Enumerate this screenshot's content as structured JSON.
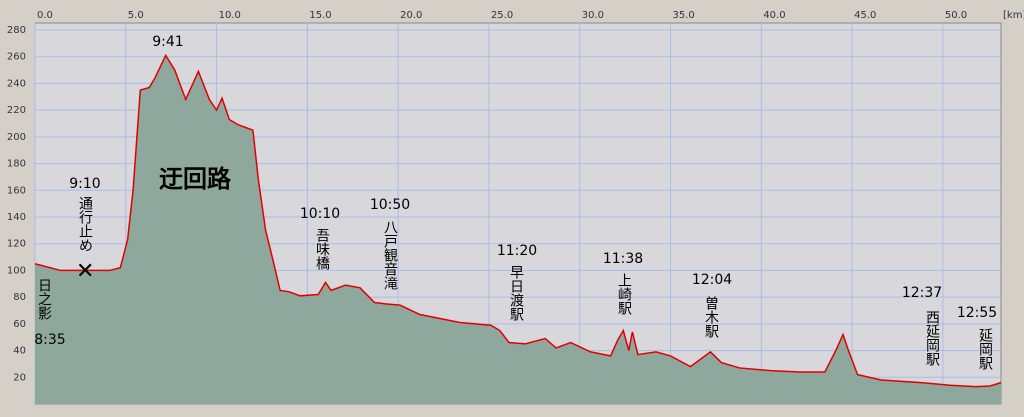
{
  "chart_data": {
    "type": "area",
    "x": [
      0,
      1.4,
      2.75,
      4.1,
      4.7,
      5.1,
      5.4,
      5.8,
      6.3,
      6.6,
      7.2,
      7.7,
      8.3,
      9.0,
      9.6,
      10.0,
      10.3,
      10.7,
      11.2,
      11.6,
      12.0,
      12.3,
      12.7,
      13.1,
      13.5,
      14.0,
      14.6,
      15.6,
      16.0,
      16.3,
      17.1,
      17.9,
      18.7,
      19.3,
      20.1,
      21.2,
      22.3,
      23.4,
      25.1,
      25.6,
      26.1,
      27.0,
      28.1,
      28.7,
      29.5,
      30.6,
      31.7,
      32.1,
      32.4,
      32.7,
      32.9,
      33.2,
      34.2,
      35.0,
      36.1,
      37.2,
      37.8,
      38.8,
      40.5,
      42.1,
      43.5,
      44.1,
      44.5,
      44.8,
      45.3,
      46.6,
      48.8,
      50.4,
      51.8,
      52.6,
      53.2
    ],
    "values": [
      105,
      100,
      100,
      100,
      102,
      123,
      160,
      235,
      237,
      244,
      261,
      250,
      228,
      249,
      228,
      220,
      229,
      213,
      209,
      207,
      205,
      168,
      130,
      108,
      85,
      84,
      81,
      82,
      91,
      85,
      89,
      87,
      76,
      75,
      74,
      67,
      64,
      61,
      59,
      55,
      46,
      45,
      49,
      42,
      46,
      39,
      36,
      48,
      55,
      40,
      54,
      37,
      39,
      36,
      28,
      39,
      31,
      27,
      25,
      24,
      24,
      40,
      52,
      40,
      22,
      18,
      16,
      14,
      13,
      13.5,
      16
    ],
    "color": "#e00000",
    "fill": "#8fa89e",
    "xlim": [
      0,
      53.2
    ],
    "ylim": [
      0,
      280
    ],
    "xticks": [
      {
        "value": 0,
        "label": "0.0"
      },
      {
        "value": 5,
        "label": "5.0"
      },
      {
        "value": 10,
        "label": "10.0"
      },
      {
        "value": 15,
        "label": "15.0"
      },
      {
        "value": 20,
        "label": "20.0"
      },
      {
        "value": 25,
        "label": "25.0"
      },
      {
        "value": 30,
        "label": "30.0"
      },
      {
        "value": 35,
        "label": "35.0"
      },
      {
        "value": 40,
        "label": "40.0"
      },
      {
        "value": 45,
        "label": "45.0"
      },
      {
        "value": 50,
        "label": "50.0"
      }
    ],
    "x_unit_label": "[km]",
    "yticks": [
      20,
      40,
      60,
      80,
      100,
      120,
      140,
      160,
      180,
      200,
      220,
      240,
      260,
      280
    ],
    "grid": true,
    "annotations": [
      "8:35",
      "日之影",
      "9:10",
      "通行止め",
      "9:41",
      "迂回路",
      "10:10",
      "吾味橋",
      "10:50",
      "八戸観音滝",
      "11:20",
      "早日渡駅",
      "11:38",
      "上崎駅",
      "12:04",
      "曽木駅",
      "12:37",
      "西延岡駅",
      "12:55",
      "延岡駅"
    ]
  }
}
